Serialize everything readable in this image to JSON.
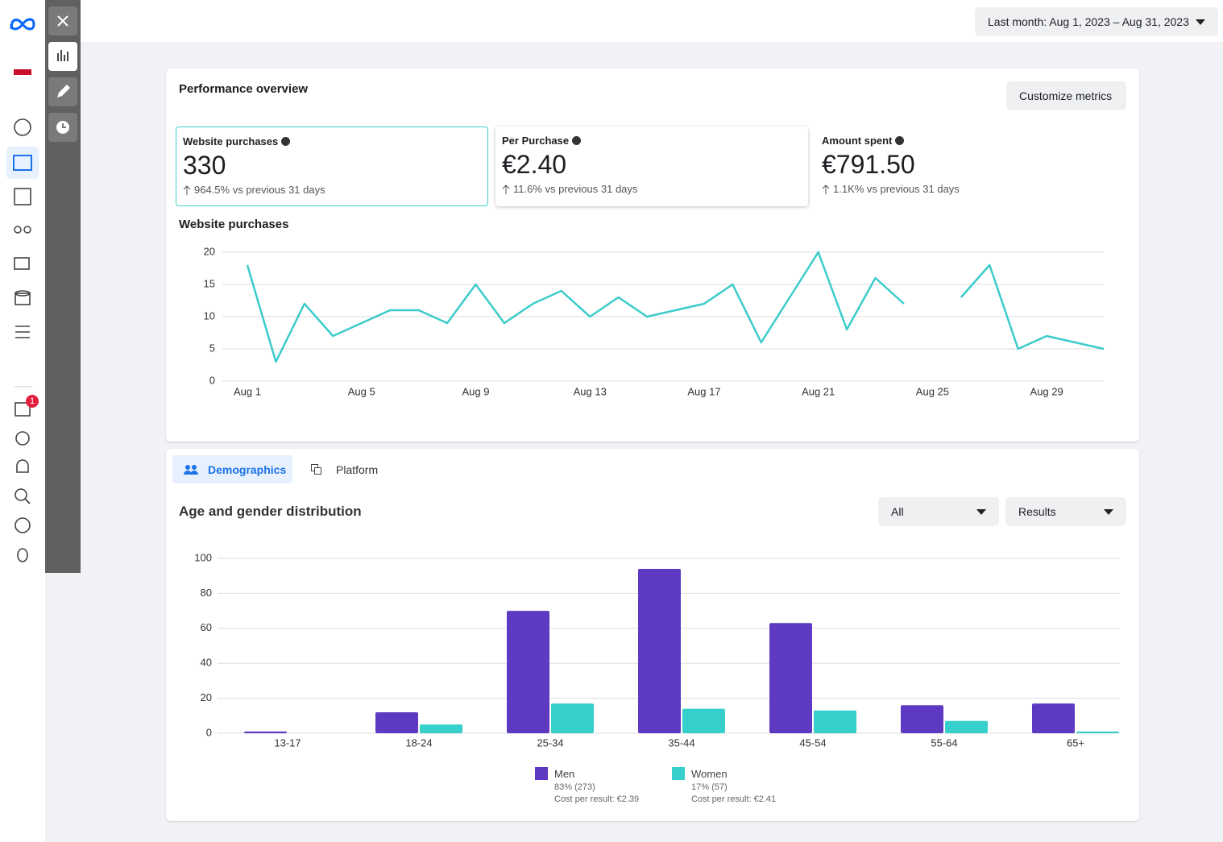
{
  "header": {
    "date_range": "Last month: Aug 1, 2023 – Aug 31, 2023"
  },
  "sidebar": {
    "badge": "1"
  },
  "performance": {
    "title": "Performance overview",
    "button": "Customize metrics",
    "metrics": [
      {
        "label": "Website purchases",
        "value": "330",
        "change": "964.5% vs previous 31 days"
      },
      {
        "label": "Per Purchase",
        "value": "€2.40",
        "change": "11.6% vs previous 31 days"
      },
      {
        "label": "Amount spent",
        "value": "€791.50",
        "change": "1.1K% vs previous 31 days"
      }
    ]
  },
  "breakdown": {
    "tabs": [
      "Demographics",
      "Platform"
    ],
    "filters": [
      "All",
      "Results"
    ]
  },
  "chart_data": [
    {
      "type": "line",
      "title": "Website purchases",
      "categories": [
        "Aug 1",
        null,
        null,
        null,
        "Aug 5",
        null,
        null,
        null,
        "Aug 9",
        null,
        null,
        null,
        "Aug 13",
        null,
        null,
        null,
        "Aug 17",
        null,
        null,
        null,
        "Aug 21",
        null,
        null,
        null,
        "Aug 25",
        null,
        null,
        null,
        "Aug 29",
        null,
        null
      ],
      "values": [
        18,
        3,
        12,
        7,
        9,
        11,
        11,
        9,
        15,
        9,
        12,
        14,
        10,
        13,
        10,
        11,
        12,
        15,
        6,
        13,
        20,
        8,
        16,
        12,
        null,
        13,
        18,
        5,
        7,
        6,
        5
      ],
      "color": "#3ccbcb",
      "ylim": [
        0,
        20
      ],
      "yticks": [
        0,
        5,
        10,
        15,
        20
      ],
      "grid": true
    },
    {
      "type": "bar",
      "title": "Age and gender distribution",
      "categories": [
        "13-17",
        "18-24",
        "25-34",
        "35-44",
        "45-54",
        "55-64",
        "65+"
      ],
      "series": [
        {
          "name": "Men",
          "color": "#5e3ac2",
          "values": [
            1,
            12,
            70,
            94,
            63,
            16,
            17
          ],
          "share": "83% (273)",
          "cost": "Cost per result: €2.39"
        },
        {
          "name": "Women",
          "color": "#36cfcb",
          "values": [
            0,
            5,
            17,
            14,
            13,
            7,
            1
          ],
          "share": "17% (57)",
          "cost": "Cost per result: €2.41"
        }
      ],
      "ylim": [
        0,
        100
      ],
      "yticks": [
        0,
        20,
        40,
        60,
        80,
        100
      ],
      "grid": true
    }
  ]
}
